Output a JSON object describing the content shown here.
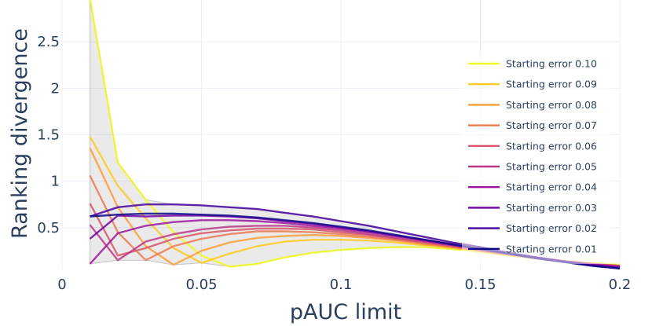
{
  "chart_data": {
    "type": "line",
    "xlabel": "pAUC limit",
    "ylabel": "Ranking divergence",
    "xlim": [
      0,
      0.2
    ],
    "ylim": [
      0.05,
      2.95
    ],
    "xticks": [
      0,
      0.05,
      0.1,
      0.15,
      0.2
    ],
    "xtick_labels": [
      "0",
      "0.05",
      "0.1",
      "0.15",
      "0.2"
    ],
    "yticks": [
      0.5,
      1,
      1.5,
      2,
      2.5
    ],
    "ytick_labels": [
      "0.5",
      "1",
      "1.5",
      "2",
      "2.5"
    ],
    "grid": true,
    "legend_position": "right",
    "shaded_band": "min-max envelope across series (light gray)",
    "x": [
      0.01,
      0.02,
      0.03,
      0.04,
      0.05,
      0.06,
      0.07,
      0.08,
      0.09,
      0.1,
      0.11,
      0.12,
      0.13,
      0.14,
      0.15,
      0.16,
      0.17,
      0.18,
      0.19,
      0.2
    ],
    "series": [
      {
        "name": "Starting error 0.10",
        "color": "#f0f921",
        "values": [
          2.97,
          1.2,
          0.8,
          0.45,
          0.2,
          0.08,
          0.11,
          0.18,
          0.23,
          0.26,
          0.28,
          0.29,
          0.29,
          0.27,
          0.24,
          0.2,
          0.17,
          0.14,
          0.12,
          0.1
        ]
      },
      {
        "name": "Starting error 0.09",
        "color": "#fdca26",
        "values": [
          1.48,
          0.95,
          0.6,
          0.28,
          0.12,
          0.22,
          0.3,
          0.35,
          0.37,
          0.37,
          0.36,
          0.34,
          0.31,
          0.28,
          0.25,
          0.21,
          0.17,
          0.14,
          0.11,
          0.09
        ]
      },
      {
        "name": "Starting error 0.08",
        "color": "#fb9f3a",
        "values": [
          1.36,
          0.72,
          0.3,
          0.1,
          0.25,
          0.34,
          0.39,
          0.41,
          0.42,
          0.41,
          0.39,
          0.36,
          0.32,
          0.29,
          0.25,
          0.21,
          0.17,
          0.14,
          0.11,
          0.09
        ]
      },
      {
        "name": "Starting error 0.07",
        "color": "#ed7953",
        "values": [
          1.06,
          0.45,
          0.15,
          0.3,
          0.38,
          0.43,
          0.46,
          0.46,
          0.45,
          0.43,
          0.4,
          0.37,
          0.33,
          0.29,
          0.25,
          0.21,
          0.17,
          0.14,
          0.11,
          0.09
        ]
      },
      {
        "name": "Starting error 0.06",
        "color": "#d8576b",
        "values": [
          0.76,
          0.2,
          0.28,
          0.38,
          0.44,
          0.47,
          0.49,
          0.49,
          0.48,
          0.45,
          0.42,
          0.38,
          0.34,
          0.3,
          0.26,
          0.22,
          0.18,
          0.14,
          0.11,
          0.09
        ]
      },
      {
        "name": "Starting error 0.05",
        "color": "#bd3786",
        "values": [
          0.53,
          0.15,
          0.35,
          0.43,
          0.48,
          0.51,
          0.52,
          0.52,
          0.5,
          0.47,
          0.43,
          0.39,
          0.35,
          0.31,
          0.26,
          0.22,
          0.18,
          0.14,
          0.11,
          0.08
        ]
      },
      {
        "name": "Starting error 0.04",
        "color": "#9c179e",
        "values": [
          0.11,
          0.44,
          0.52,
          0.56,
          0.58,
          0.58,
          0.57,
          0.55,
          0.52,
          0.49,
          0.45,
          0.41,
          0.36,
          0.31,
          0.27,
          0.22,
          0.18,
          0.14,
          0.1,
          0.08
        ]
      },
      {
        "name": "Starting error 0.03",
        "color": "#7201a8",
        "values": [
          0.38,
          0.63,
          0.62,
          0.63,
          0.63,
          0.62,
          0.6,
          0.57,
          0.54,
          0.5,
          0.46,
          0.41,
          0.37,
          0.32,
          0.27,
          0.22,
          0.17,
          0.13,
          0.1,
          0.07
        ]
      },
      {
        "name": "Starting error 0.02",
        "color": "#46039f",
        "values": [
          0.62,
          0.72,
          0.75,
          0.75,
          0.74,
          0.72,
          0.7,
          0.66,
          0.62,
          0.57,
          0.52,
          0.46,
          0.4,
          0.34,
          0.29,
          0.23,
          0.18,
          0.13,
          0.09,
          0.06
        ]
      },
      {
        "name": "Starting error 0.01",
        "color": "#0d0887",
        "values": [
          0.62,
          0.64,
          0.65,
          0.65,
          0.64,
          0.63,
          0.61,
          0.58,
          0.55,
          0.51,
          0.47,
          0.42,
          0.37,
          0.32,
          0.27,
          0.22,
          0.17,
          0.13,
          0.09,
          0.06
        ]
      }
    ]
  }
}
